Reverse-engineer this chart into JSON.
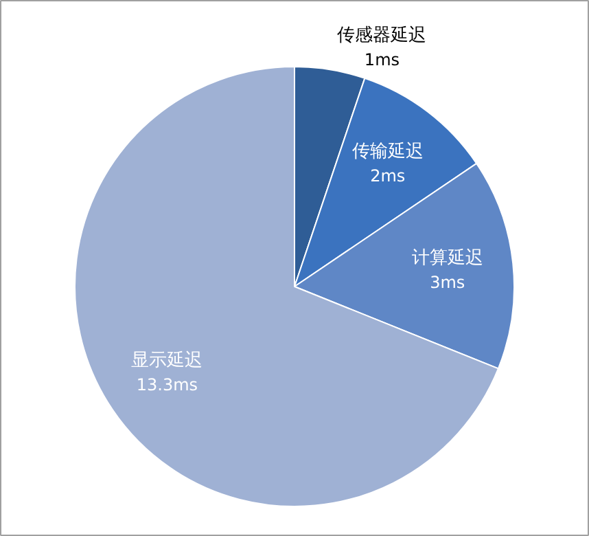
{
  "chart_data": {
    "type": "pie",
    "categories": [
      "传感器延迟",
      "传输延迟",
      "计算延迟",
      "显示延迟"
    ],
    "values": [
      1,
      2,
      3,
      13.3
    ],
    "value_labels": [
      "1ms",
      "2ms",
      "3ms",
      "13.3ms"
    ],
    "colors": [
      "#2f5d96",
      "#3b73bf",
      "#5f87c6",
      "#9fb1d4"
    ]
  }
}
